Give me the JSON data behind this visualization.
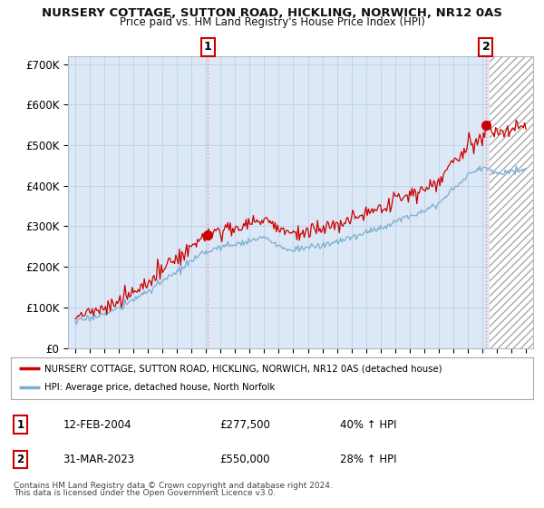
{
  "title": "NURSERY COTTAGE, SUTTON ROAD, HICKLING, NORWICH, NR12 0AS",
  "subtitle": "Price paid vs. HM Land Registry's House Price Index (HPI)",
  "legend_line1": "NURSERY COTTAGE, SUTTON ROAD, HICKLING, NORWICH, NR12 0AS (detached house)",
  "legend_line2": "HPI: Average price, detached house, North Norfolk",
  "footer1": "Contains HM Land Registry data © Crown copyright and database right 2024.",
  "footer2": "This data is licensed under the Open Government Licence v3.0.",
  "annotation1_label": "1",
  "annotation1_date": "12-FEB-2004",
  "annotation1_price": "£277,500",
  "annotation1_hpi": "40% ↑ HPI",
  "annotation2_label": "2",
  "annotation2_date": "31-MAR-2023",
  "annotation2_price": "£550,000",
  "annotation2_hpi": "28% ↑ HPI",
  "sale1_x": 2004.12,
  "sale1_y": 277500,
  "sale2_x": 2023.25,
  "sale2_y": 550000,
  "hpi_color": "#7aadd4",
  "price_color": "#cc0000",
  "vline_color": "#ff8888",
  "background_plot": "#dce8f5",
  "background_fig": "#ffffff",
  "grid_color": "#b8cfe8",
  "hatch_color": "#aaaaaa",
  "ylim": [
    0,
    720000
  ],
  "xlim": [
    1994.5,
    2026.5
  ],
  "yticks": [
    0,
    100000,
    200000,
    300000,
    400000,
    500000,
    600000,
    700000
  ],
  "ytick_labels": [
    "£0",
    "£100K",
    "£200K",
    "£300K",
    "£400K",
    "£500K",
    "£600K",
    "£700K"
  ],
  "xticks": [
    1995,
    1996,
    1997,
    1998,
    1999,
    2000,
    2001,
    2002,
    2003,
    2004,
    2005,
    2006,
    2007,
    2008,
    2009,
    2010,
    2011,
    2012,
    2013,
    2014,
    2015,
    2016,
    2017,
    2018,
    2019,
    2020,
    2021,
    2022,
    2023,
    2024,
    2025,
    2026
  ],
  "hatch_start": 2023.5
}
